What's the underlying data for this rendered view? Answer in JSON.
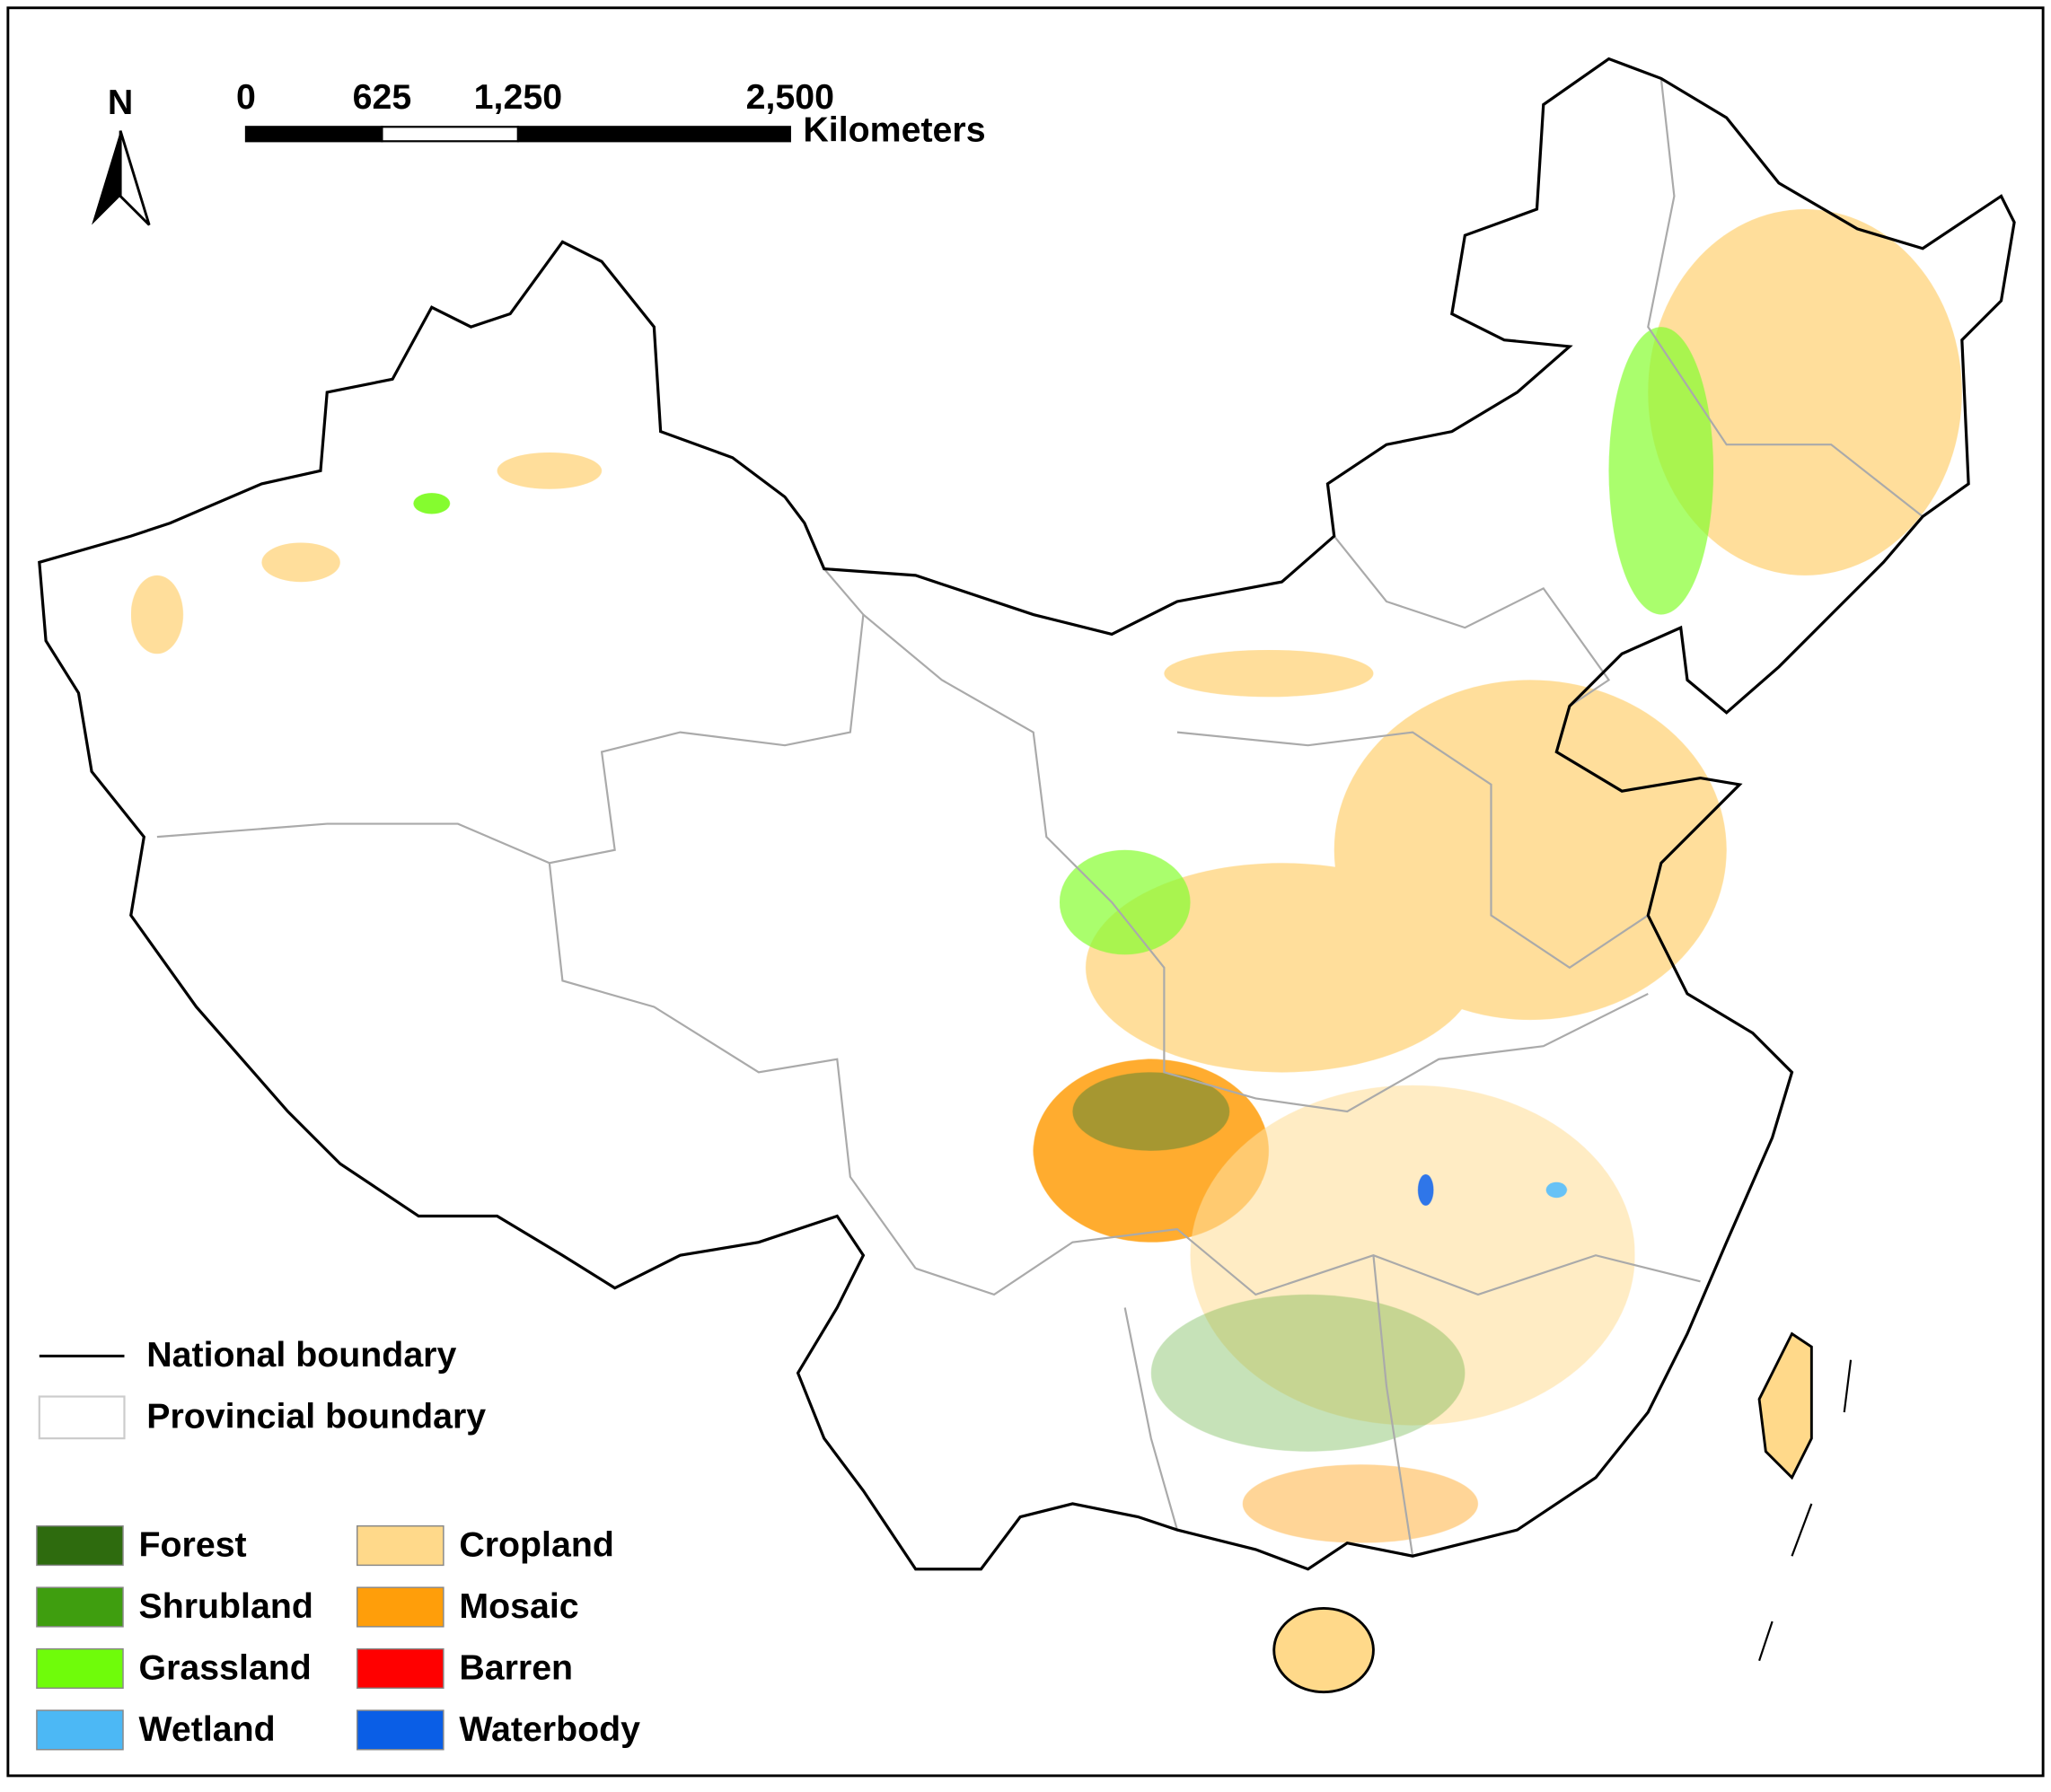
{
  "north_arrow": {
    "label": "N"
  },
  "scale_bar": {
    "ticks": [
      0,
      625,
      {
        "value": 1250,
        "label": "1,250"
      },
      {
        "value": 2500,
        "label": "2,500"
      }
    ],
    "unit": "Kilometers"
  },
  "boundary_legend": [
    {
      "label": "National boundary"
    },
    {
      "label": "Provincial boundary"
    }
  ],
  "land_cover_legend": [
    {
      "label": "Forest",
      "color": "#2e6b0e"
    },
    {
      "label": "Shrubland",
      "color": "#3f9e0f"
    },
    {
      "label": "Grassland",
      "color": "#6ffc0a"
    },
    {
      "label": "Wetland",
      "color": "#4cb8f5"
    },
    {
      "label": "Cropland",
      "color": "#ffd98a"
    },
    {
      "label": "Mosaic",
      "color": "#ff9e0a"
    },
    {
      "label": "Barren",
      "color": "#ff0000"
    },
    {
      "label": "Waterbody",
      "color": "#0a5ee6"
    }
  ]
}
